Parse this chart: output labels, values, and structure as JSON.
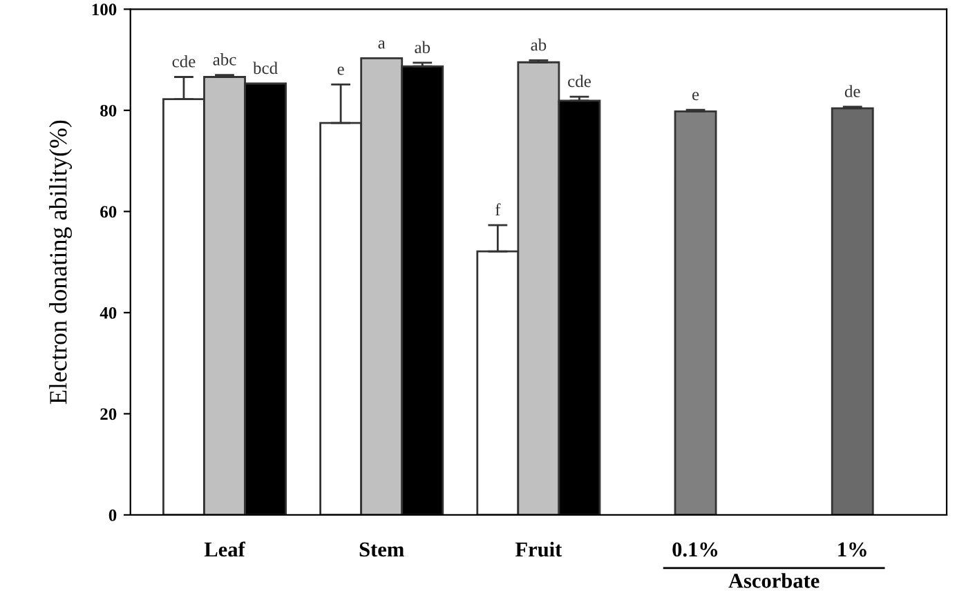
{
  "chart_data": {
    "type": "bar",
    "ylabel": "Electron donating ability(%)",
    "categories": [
      "Leaf",
      "Stem",
      "Fruit",
      "0.1%",
      "1%"
    ],
    "series": [
      {
        "color": "#ffffff",
        "values": [
          82.2,
          77.5,
          52.1,
          null,
          null
        ],
        "errors": [
          [
            82.2,
            86.6
          ],
          [
            77.5,
            85.1
          ],
          [
            52.1,
            57.3
          ],
          null,
          null
        ],
        "value_labels": [
          "cde",
          "e",
          "f",
          null,
          null
        ]
      },
      {
        "color": "#c0c0c0",
        "values": [
          86.6,
          90.3,
          89.5,
          null,
          null
        ],
        "errors": [
          [
            86.6,
            87.0
          ],
          null,
          [
            89.5,
            89.9
          ],
          null,
          null
        ],
        "value_labels": [
          "abc",
          "a",
          "ab",
          null,
          null
        ]
      },
      {
        "color": "#000000",
        "values": [
          85.3,
          88.7,
          81.9,
          null,
          null
        ],
        "errors": [
          null,
          [
            88.7,
            89.4
          ],
          [
            81.9,
            82.7
          ],
          null,
          null
        ],
        "value_labels": [
          "bcd",
          "ab",
          "cde",
          null,
          null
        ]
      },
      {
        "color": "#808080",
        "values": [
          null,
          null,
          null,
          79.8,
          null
        ],
        "errors": [
          null,
          null,
          null,
          [
            79.8,
            80.1
          ],
          null
        ],
        "value_labels": [
          null,
          null,
          null,
          "e",
          null
        ]
      },
      {
        "color": "#6a6a6a",
        "values": [
          null,
          null,
          null,
          null,
          80.4
        ],
        "errors": [
          null,
          null,
          null,
          null,
          [
            80.4,
            80.7
          ]
        ],
        "value_labels": [
          null,
          null,
          null,
          null,
          "de"
        ]
      }
    ],
    "ylim": [
      0,
      100
    ],
    "yticks": [
      0,
      20,
      40,
      60,
      80,
      100
    ],
    "grid": false,
    "legend": false,
    "annotations": [
      "Ascorbate"
    ]
  }
}
